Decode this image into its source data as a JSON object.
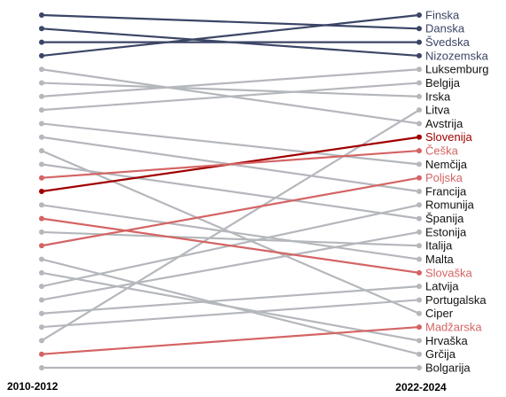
{
  "chart_data": {
    "type": "slope",
    "categories": [
      "2010-2012",
      "2022-2024"
    ],
    "ylim": [
      1,
      27
    ],
    "reversed": true,
    "series": [
      {
        "name": "Finska",
        "color": "#3b4566",
        "label_color": "#3b4566",
        "values": [
          4,
          1
        ]
      },
      {
        "name": "Danska",
        "color": "#3b4566",
        "label_color": "#3b4566",
        "values": [
          1,
          2
        ]
      },
      {
        "name": "Švedska",
        "color": "#3b4566",
        "label_color": "#3b4566",
        "values": [
          3,
          3
        ]
      },
      {
        "name": "Nizozemska",
        "color": "#3b4566",
        "label_color": "#3b4566",
        "values": [
          2,
          4
        ]
      },
      {
        "name": "Luksemburg",
        "color": "#b4b7bc",
        "label_color": "#111111",
        "values": [
          7,
          5
        ]
      },
      {
        "name": "Belgija",
        "color": "#b4b7bc",
        "label_color": "#111111",
        "values": [
          8,
          6
        ]
      },
      {
        "name": "Irska",
        "color": "#b4b7bc",
        "label_color": "#111111",
        "values": [
          6,
          7
        ]
      },
      {
        "name": "Litva",
        "color": "#b4b7bc",
        "label_color": "#111111",
        "values": [
          25,
          8
        ]
      },
      {
        "name": "Avstrija",
        "color": "#b4b7bc",
        "label_color": "#111111",
        "values": [
          5,
          9
        ]
      },
      {
        "name": "Slovenija",
        "color": "#a00000",
        "label_color": "#a00000",
        "values": [
          14,
          10
        ]
      },
      {
        "name": "Češka",
        "color": "#d46464",
        "label_color": "#d46464",
        "values": [
          13,
          11
        ]
      },
      {
        "name": "Nemčija",
        "color": "#b4b7bc",
        "label_color": "#111111",
        "values": [
          9,
          12
        ]
      },
      {
        "name": "Poljska",
        "color": "#d46464",
        "label_color": "#d46464",
        "values": [
          18,
          13
        ]
      },
      {
        "name": "Francija",
        "color": "#b4b7bc",
        "label_color": "#111111",
        "values": [
          10,
          14
        ]
      },
      {
        "name": "Romunija",
        "color": "#b4b7bc",
        "label_color": "#111111",
        "values": [
          21,
          15
        ]
      },
      {
        "name": "Španija",
        "color": "#b4b7bc",
        "label_color": "#111111",
        "values": [
          12,
          16
        ]
      },
      {
        "name": "Estonija",
        "color": "#b4b7bc",
        "label_color": "#111111",
        "values": [
          22,
          17
        ]
      },
      {
        "name": "Italija",
        "color": "#b4b7bc",
        "label_color": "#111111",
        "values": [
          17,
          18
        ]
      },
      {
        "name": "Malta",
        "color": "#b4b7bc",
        "label_color": "#111111",
        "values": [
          15,
          19
        ]
      },
      {
        "name": "Slovaška",
        "color": "#d46464",
        "label_color": "#d46464",
        "values": [
          16,
          20
        ]
      },
      {
        "name": "Latvija",
        "color": "#b4b7bc",
        "label_color": "#111111",
        "values": [
          23,
          21
        ]
      },
      {
        "name": "Portugalska",
        "color": "#b4b7bc",
        "label_color": "#111111",
        "values": [
          24,
          22
        ]
      },
      {
        "name": "Ciper",
        "color": "#b4b7bc",
        "label_color": "#111111",
        "values": [
          11,
          23
        ]
      },
      {
        "name": "Madžarska",
        "color": "#d46464",
        "label_color": "#d46464",
        "values": [
          26,
          24
        ]
      },
      {
        "name": "Hrvaška",
        "color": "#b4b7bc",
        "label_color": "#111111",
        "values": [
          20,
          25
        ]
      },
      {
        "name": "Grčija",
        "color": "#b4b7bc",
        "label_color": "#111111",
        "values": [
          19,
          26
        ]
      },
      {
        "name": "Bolgarija",
        "color": "#b4b7bc",
        "label_color": "#111111",
        "values": [
          27,
          27
        ]
      }
    ]
  }
}
